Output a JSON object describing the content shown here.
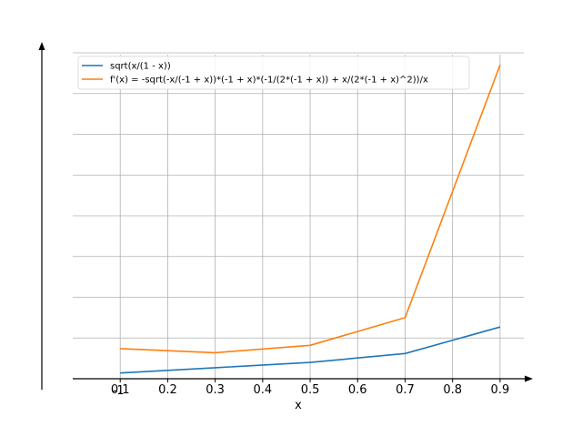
{
  "chart_data": {
    "type": "line",
    "xlabel": "x",
    "ylabel": "",
    "xlim": [
      0.0,
      0.95
    ],
    "ylim": [
      0.0,
      8.0
    ],
    "grid": true,
    "legend_position": "top-left",
    "x_ticks": [
      "0.1",
      "0.2",
      "0.3",
      "0.4",
      "0.5",
      "0.6",
      "0.7",
      "0.8",
      "0.9"
    ],
    "y_ticks": [],
    "extra_tick_label": "-1",
    "series": [
      {
        "name": "sqrt(x/(1 - x))",
        "color": "#1f77b4",
        "x": [
          0.1,
          0.3,
          0.5,
          0.7,
          0.9
        ],
        "y": [
          0.14,
          0.27,
          0.4,
          0.62,
          1.27
        ]
      },
      {
        "name": "f'(x) = -sqrt(-x/(-1 + x))*(-1 + x)*(-1/(2*(-1 + x)) + x/(2*(-1 + x)^2))/x",
        "color": "#ff7f0e",
        "x": [
          0.1,
          0.3,
          0.5,
          0.7,
          0.9
        ],
        "y": [
          0.74,
          0.64,
          0.82,
          1.5,
          7.7
        ]
      }
    ]
  }
}
